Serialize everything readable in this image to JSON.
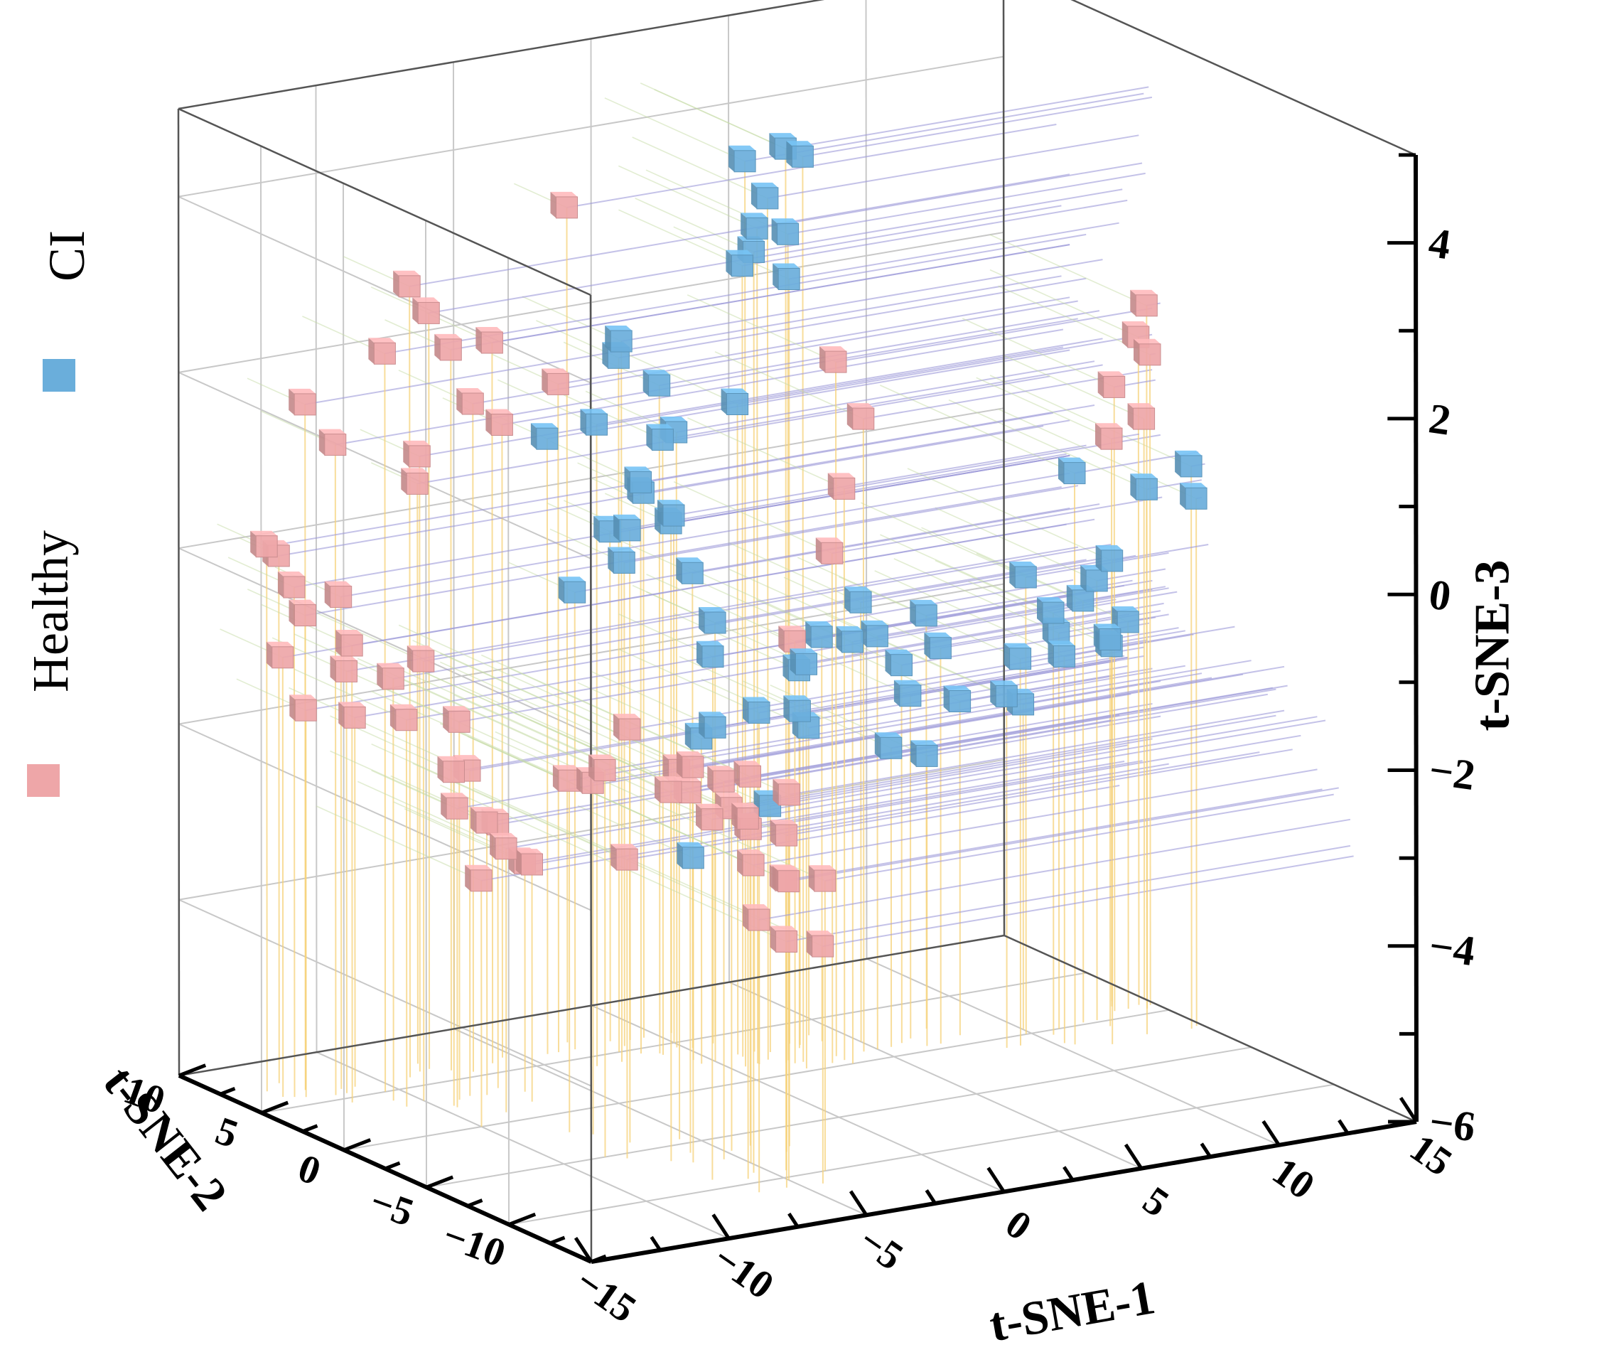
{
  "chart_data": {
    "type": "scatter",
    "projection": "3d",
    "axes": {
      "x": {
        "label": "t-SNE-1",
        "range": [
          -15,
          15
        ],
        "ticks": [
          -15,
          -10,
          -5,
          0,
          5,
          10,
          15
        ],
        "tick_labels": [
          "−15",
          "−10",
          "−5",
          "0",
          "5",
          "10",
          "15"
        ]
      },
      "y": {
        "label": "t-SNE-2",
        "range": [
          -15,
          10
        ],
        "ticks": [
          -10,
          -5,
          0,
          5,
          10
        ],
        "tick_labels": [
          "−10",
          "−5",
          "0",
          "5",
          "10"
        ]
      },
      "z": {
        "label": "t-SNE-3",
        "range": [
          -6,
          5
        ],
        "ticks": [
          -6,
          -4,
          -2,
          0,
          2,
          4
        ],
        "tick_labels": [
          "−6",
          "−4",
          "−2",
          "0",
          "2",
          "4"
        ]
      }
    },
    "grid": true,
    "drop_lines": true,
    "legend": {
      "placement": "left",
      "entries": [
        {
          "label": "CI",
          "color": "#6aaedb"
        },
        {
          "label": "Healthy",
          "color": "#eea6a8"
        }
      ]
    },
    "colors": {
      "CI": "#6aaedb",
      "Healthy": "#eea6a8",
      "drop_line_z": "#f5d27a",
      "drop_line_x": "#9d9ad8",
      "drop_line_y": "#c6dba6",
      "grid": "#c8c8c8"
    },
    "series": [
      {
        "name": "CI",
        "points": [
          [
            0.5,
            1.5,
            4.3
          ],
          [
            1.8,
            1.2,
            4.4
          ],
          [
            2.3,
            1.0,
            4.3
          ],
          [
            1.5,
            1.8,
            3.8
          ],
          [
            1.0,
            1.6,
            3.5
          ],
          [
            2.0,
            1.4,
            3.4
          ],
          [
            1.0,
            2.5,
            3.0
          ],
          [
            1.6,
            2.8,
            3.1
          ],
          [
            3.0,
            3.0,
            2.7
          ],
          [
            -2.5,
            4.0,
            2.2
          ],
          [
            -2.0,
            5.0,
            1.9
          ],
          [
            -1.0,
            4.2,
            1.6
          ],
          [
            1.0,
            2.8,
            1.4
          ],
          [
            -3.4,
            4.0,
            1.3
          ],
          [
            -1.0,
            4.0,
            1.0
          ],
          [
            -0.2,
            4.5,
            1.0
          ],
          [
            -4.0,
            6.0,
            1.0
          ],
          [
            -1.5,
            4.5,
            0.5
          ],
          [
            -0.5,
            6.0,
            0.2
          ],
          [
            0.0,
            5.0,
            0.0
          ],
          [
            -1.6,
            6.2,
            -0.2
          ],
          [
            -1.0,
            6.0,
            -0.2
          ],
          [
            0.5,
            6.0,
            -0.2
          ],
          [
            -1.5,
            5.5,
            -0.5
          ],
          [
            0.2,
            4.2,
            -0.6
          ],
          [
            -3.0,
            6.0,
            -0.8
          ],
          [
            1.5,
            5.0,
            -1.3
          ],
          [
            1.0,
            4.3,
            -1.6
          ],
          [
            0.0,
            2.5,
            -2.2
          ],
          [
            -0.5,
            2.5,
            -2.3
          ],
          [
            1.0,
            1.5,
            -2.0
          ],
          [
            2.0,
            0.3,
            -1.4
          ],
          [
            3.5,
            0.0,
            -1.2
          ],
          [
            5.0,
            1.0,
            -1.3
          ],
          [
            7.0,
            0.5,
            -1.5
          ],
          [
            9.0,
            -1.0,
            -1.6
          ],
          [
            10.3,
            -1.5,
            -1.6
          ],
          [
            10.5,
            -0.5,
            -1.2
          ],
          [
            11.0,
            0.0,
            -1.5
          ],
          [
            8.5,
            -1.0,
            -2.0
          ],
          [
            10.0,
            0.5,
            -2.3
          ],
          [
            14.5,
            -2.2,
            0.4
          ],
          [
            14.8,
            -2.0,
            0.0
          ],
          [
            10.5,
            -1.8,
            0.5
          ],
          [
            5.0,
            2.0,
            -1.0
          ],
          [
            4.0,
            2.7,
            -1.4
          ],
          [
            3.0,
            2.4,
            -1.7
          ],
          [
            6.0,
            1.2,
            -1.7
          ],
          [
            6.5,
            1.5,
            -2.1
          ],
          [
            8.0,
            1.0,
            -2.2
          ],
          [
            3.2,
            2.7,
            -2.2
          ],
          [
            5.5,
            1.0,
            -2.6
          ],
          [
            6.5,
            0.5,
            -2.7
          ],
          [
            2.0,
            2.5,
            -3.2
          ],
          [
            -0.5,
            3.0,
            -3.7
          ],
          [
            4.0,
            3.5,
            -2.5
          ],
          [
            13.0,
            -2.0,
            0.2
          ],
          [
            11.5,
            -2.4,
            -0.5
          ],
          [
            12.5,
            0.2,
            -1.0
          ],
          [
            14.0,
            0.8,
            -1.6
          ],
          [
            13.7,
            1.3,
            -1.9
          ],
          [
            12.0,
            0.2,
            -1.2
          ],
          [
            7.5,
            2.2,
            -1.3
          ],
          [
            9.8,
            0.0,
            -0.8
          ],
          [
            12.5,
            -0.6,
            -1.6
          ]
        ]
      },
      {
        "name": "Healthy",
        "points": [
          [
            -9.0,
            6.0,
            3.0
          ],
          [
            -8.0,
            6.5,
            2.6
          ],
          [
            -7.5,
            6.0,
            2.2
          ],
          [
            -7.0,
            5.5,
            1.6
          ],
          [
            -8.4,
            6.4,
            1.0
          ],
          [
            -6.0,
            6.0,
            2.2
          ],
          [
            -8.0,
            7.2,
            0.6
          ],
          [
            -5.4,
            6.4,
            1.2
          ],
          [
            -3.6,
            6.0,
            1.6
          ],
          [
            -2.8,
            6.8,
            3.5
          ],
          [
            -12.5,
            6.5,
            1.8
          ],
          [
            -12.0,
            5.5,
            1.4
          ],
          [
            -10.5,
            5.0,
            2.4
          ],
          [
            -13.6,
            7.0,
            0.2
          ],
          [
            -12.8,
            7.6,
            0.0
          ],
          [
            -13.2,
            6.0,
            -0.2
          ],
          [
            -12.5,
            6.5,
            -0.6
          ],
          [
            -11.5,
            6.0,
            -0.4
          ],
          [
            -12.0,
            4.5,
            -0.8
          ],
          [
            -13.5,
            6.2,
            -1.0
          ],
          [
            -11.6,
            5.5,
            -1.2
          ],
          [
            -12.9,
            5.8,
            -1.6
          ],
          [
            -11.0,
            6.0,
            -1.8
          ],
          [
            -10.8,
            4.0,
            -1.2
          ],
          [
            -10.0,
            3.5,
            -1.0
          ],
          [
            -10.8,
            3.2,
            -1.6
          ],
          [
            -9.0,
            3.0,
            -1.7
          ],
          [
            -9.5,
            2.5,
            -2.2
          ],
          [
            -8.5,
            3.2,
            -2.3
          ],
          [
            -9.5,
            2.3,
            -2.6
          ],
          [
            -8.0,
            3.0,
            -2.9
          ],
          [
            -7.3,
            3.5,
            -3.0
          ],
          [
            -8.5,
            1.0,
            -3.0
          ],
          [
            -6.8,
            2.7,
            -3.4
          ],
          [
            -7.2,
            1.6,
            -3.3
          ],
          [
            -10.0,
            0.0,
            -3.2
          ],
          [
            -8.0,
            -2.0,
            -2.0
          ],
          [
            -7.5,
            -2.6,
            -2.0
          ],
          [
            -7.0,
            -4.0,
            -1.3
          ],
          [
            -5.5,
            -4.5,
            -1.8
          ],
          [
            -8.5,
            -5.0,
            -1.6
          ],
          [
            -8.0,
            -5.5,
            -2.6
          ],
          [
            -7.0,
            -6.5,
            -1.8
          ],
          [
            -6.5,
            -7.0,
            -1.5
          ],
          [
            -6.0,
            -6.0,
            -1.9
          ],
          [
            -5.5,
            -7.2,
            -1.7
          ],
          [
            -4.8,
            -6.5,
            -2.1
          ],
          [
            -4.0,
            -6.3,
            -1.8
          ],
          [
            -5.0,
            -8.0,
            -2.2
          ],
          [
            -3.4,
            -7.5,
            -2.4
          ],
          [
            -3.0,
            -7.0,
            -2.0
          ],
          [
            -7.0,
            -9.0,
            -1.9
          ],
          [
            -6.0,
            -9.5,
            -1.9
          ],
          [
            -5.5,
            -9.0,
            -2.5
          ],
          [
            -4.5,
            -9.3,
            -2.7
          ],
          [
            -5.0,
            -10.3,
            -2.6
          ],
          [
            -3.5,
            -10.0,
            -2.7
          ],
          [
            -5.5,
            -11.0,
            -3.2
          ],
          [
            -4.3,
            -11.2,
            -3.3
          ],
          [
            -6.5,
            -11.0,
            -2.9
          ],
          [
            3.5,
            1.0,
            1.9
          ],
          [
            4.5,
            1.0,
            1.2
          ],
          [
            3.5,
            0.5,
            0.5
          ],
          [
            3.0,
            0.4,
            -0.2
          ],
          [
            2.0,
            1.0,
            -1.2
          ],
          [
            14.5,
            0.5,
            2.0
          ],
          [
            14.5,
            1.0,
            1.6
          ],
          [
            14.8,
            0.8,
            1.4
          ],
          [
            13.5,
            0.8,
            1.1
          ],
          [
            15.0,
            1.5,
            0.6
          ],
          [
            14.0,
            1.8,
            0.4
          ]
        ]
      }
    ]
  }
}
